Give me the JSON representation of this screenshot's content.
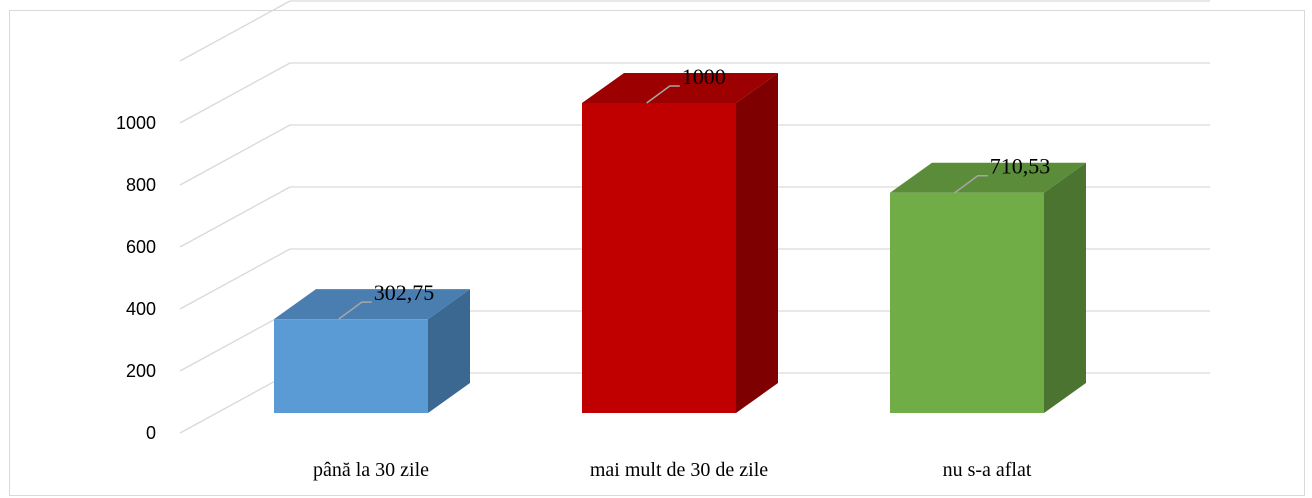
{
  "chart_data": {
    "type": "bar",
    "style": "3d-column",
    "categories": [
      "până la 30 zile",
      "mai mult de 30 de zile",
      "nu s-a aflat"
    ],
    "values": [
      302.75,
      1000,
      710.53
    ],
    "data_labels": [
      "302,75",
      "1000",
      "710,53"
    ],
    "y_ticks": [
      0,
      200,
      400,
      600,
      800,
      1000
    ],
    "y_tick_labels": [
      "0",
      "200",
      "400",
      "600",
      "800",
      "1000"
    ],
    "ylim": [
      0,
      1200
    ],
    "grid": true,
    "legend": "none",
    "colors": {
      "front": [
        "#5b9bd5",
        "#c00000",
        "#70ad47"
      ],
      "side": [
        "#3b6891",
        "#7f0000",
        "#4a7430"
      ],
      "top": [
        "#4a7eb0",
        "#9c0000",
        "#5b8c39"
      ],
      "grid": "#d9d9d9",
      "leader": "#a6a6a6"
    }
  }
}
